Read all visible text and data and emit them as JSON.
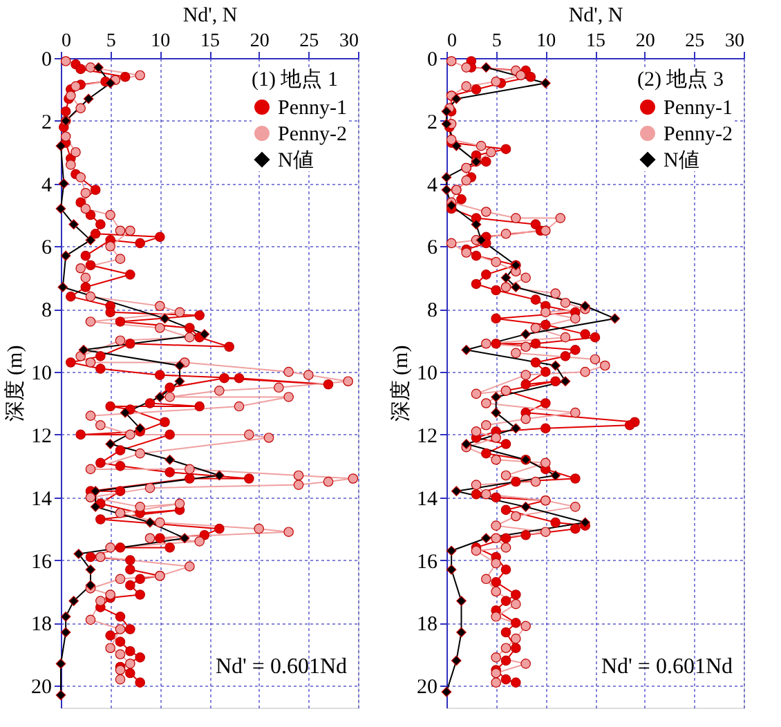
{
  "chart_data": [
    {
      "type": "line",
      "xlabel": "Nd', N",
      "ylabel": "深度 (m)",
      "legend_title": "(1) 地点 1",
      "legend": "top right",
      "grid": true,
      "xlim": [
        0,
        30
      ],
      "xticks": [
        0,
        5,
        10,
        15,
        20,
        25,
        30
      ],
      "ylim": [
        20.7,
        0
      ],
      "yticks": [
        0,
        2,
        4,
        6,
        8,
        10,
        12,
        14,
        16,
        18,
        20
      ],
      "annotations": [
        "Nd' = 0.601Nd"
      ],
      "series": [
        {
          "name": "Penny-1",
          "color": "#e00000",
          "marker": "circle",
          "x": [
            1.5,
            2,
            6.5,
            4.5,
            2,
            1,
            0.8,
            0.5,
            0.3,
            0.5,
            1,
            1.5,
            3.5,
            2,
            3,
            4,
            3.5,
            10,
            8,
            5,
            2.5,
            3,
            7,
            2.5,
            1,
            5,
            5,
            14,
            6,
            13,
            14,
            17,
            7,
            4,
            1,
            4,
            10,
            18,
            27,
            16.5,
            11,
            9,
            14,
            5,
            7,
            10.5,
            8,
            2,
            11,
            6,
            4,
            6,
            11,
            19,
            13,
            3,
            6,
            4,
            8,
            12,
            4,
            16,
            14.5,
            10,
            11,
            6,
            3,
            7,
            7,
            10,
            8,
            7,
            8,
            5,
            4,
            6,
            7,
            5,
            6,
            7,
            8,
            6,
            7,
            8
          ],
          "values": [
            0.2,
            0.35,
            0.6,
            0.75,
            0.85,
            1.0,
            1.3,
            1.7,
            2.2,
            2.7,
            3.2,
            3.7,
            4.2,
            4.6,
            5.0,
            5.3,
            5.6,
            5.7,
            5.9,
            5.8,
            6.3,
            6.6,
            6.9,
            7.3,
            7.6,
            7.9,
            8.1,
            8.2,
            8.4,
            8.6,
            8.9,
            9.2,
            9.1,
            9.5,
            9.7,
            9.9,
            10.1,
            10.2,
            10.4,
            10.2,
            10.5,
            11.0,
            11.1,
            11.1,
            11.2,
            11.6,
            11.9,
            12.0,
            12.0,
            12.5,
            12.9,
            13.0,
            13.2,
            13.4,
            13.4,
            13.8,
            13.8,
            14.2,
            14.5,
            14.4,
            14.7,
            15.0,
            15.2,
            15.3,
            15.6,
            15.6,
            15.9,
            16.0,
            16.3,
            16.5,
            16.6,
            16.8,
            17.1,
            17.2,
            17.5,
            17.8,
            18.2,
            18.4,
            18.6,
            18.9,
            19.1,
            19.4,
            19.6,
            19.9
          ]
        },
        {
          "name": "Penny-2",
          "color": "#f0a0a0",
          "marker": "circle",
          "x": [
            0.5,
            3,
            8,
            5.5,
            1.5,
            1,
            2,
            0.5,
            0.5,
            1.5,
            1,
            2,
            2.5,
            2.5,
            5,
            6,
            7,
            5,
            6,
            2,
            2.5,
            3,
            10,
            12,
            3,
            10,
            13,
            6,
            2,
            3,
            12.5,
            23,
            25,
            29,
            22,
            16,
            11,
            23,
            18,
            3,
            4,
            7,
            19,
            21,
            8,
            3,
            13,
            24,
            29.5,
            27,
            24,
            9,
            3,
            8,
            12,
            6,
            10,
            20,
            23,
            9,
            14,
            5,
            4,
            13,
            10,
            6,
            3,
            5,
            4,
            3,
            6,
            5,
            6,
            7,
            6,
            6
          ],
          "values": [
            0.1,
            0.3,
            0.55,
            0.7,
            0.9,
            1.2,
            1.6,
            2.0,
            2.5,
            3.0,
            3.4,
            3.8,
            4.3,
            4.8,
            5.0,
            5.5,
            5.5,
            6.0,
            6.4,
            6.7,
            7.0,
            7.6,
            7.9,
            8.1,
            8.4,
            8.6,
            8.9,
            9.0,
            9.5,
            9.7,
            9.7,
            10.0,
            10.1,
            10.3,
            10.5,
            10.6,
            10.8,
            10.8,
            11.1,
            11.4,
            11.7,
            12.0,
            12.0,
            12.1,
            12.6,
            13.1,
            13.1,
            13.3,
            13.4,
            13.5,
            13.6,
            13.7,
            14.0,
            14.3,
            14.2,
            14.5,
            14.8,
            15.0,
            15.1,
            15.3,
            15.4,
            15.6,
            15.9,
            16.2,
            16.5,
            16.6,
            16.9,
            17.1,
            17.3,
            17.9,
            18.2,
            18.8,
            19.0,
            19.3,
            19.5,
            19.8
          ]
        },
        {
          "name": "N値",
          "color": "#000000",
          "marker": "diamond",
          "x": [
            3.8,
            5,
            2.8,
            0.5,
            0,
            0.3,
            0,
            1.3,
            3,
            0.5,
            0.2,
            10.5,
            14.5,
            2.3,
            12,
            12,
            10,
            6.5,
            8,
            5,
            11,
            16,
            3.5,
            3.5,
            9,
            12.5,
            1.8,
            3,
            3,
            1.3,
            0.5,
            0.5,
            0,
            0
          ],
          "values": [
            0.3,
            0.8,
            1.3,
            2.0,
            2.8,
            4.0,
            4.8,
            5.3,
            5.8,
            6.3,
            7.3,
            8.3,
            8.8,
            9.3,
            9.8,
            10.3,
            10.8,
            11.3,
            11.8,
            12.3,
            12.8,
            13.3,
            13.8,
            14.3,
            14.8,
            15.3,
            15.8,
            16.3,
            16.8,
            17.3,
            17.8,
            18.3,
            19.3,
            20.3
          ]
        }
      ]
    },
    {
      "type": "line",
      "xlabel": "Nd', N",
      "ylabel": "深度 (m)",
      "legend_title": "(2) 地点 3",
      "legend": "top right",
      "grid": true,
      "xlim": [
        0,
        30
      ],
      "xticks": [
        0,
        5,
        10,
        15,
        20,
        25,
        30
      ],
      "ylim": [
        20.7,
        0
      ],
      "yticks": [
        0,
        2,
        4,
        6,
        8,
        10,
        12,
        14,
        16,
        18,
        20
      ],
      "annotations": [
        "Nd' = 0.601Nd"
      ],
      "series": [
        {
          "name": "Penny-1",
          "color": "#e00000",
          "marker": "circle",
          "x": [
            2.5,
            2.5,
            8,
            8.5,
            5.5,
            3,
            0.5,
            0.5,
            0.3,
            0.5,
            6,
            3,
            4,
            2,
            2.5,
            1,
            1.5,
            0.5,
            3,
            9,
            9.5,
            4,
            4,
            2,
            3,
            7,
            4,
            3,
            5,
            9,
            10,
            13,
            5,
            10,
            14,
            15,
            9,
            5,
            13,
            12,
            9,
            10,
            8,
            11,
            6,
            10,
            8,
            19,
            18.5,
            10,
            5,
            3,
            6,
            4,
            8,
            10,
            13,
            7,
            3,
            5,
            10,
            6,
            11,
            14,
            13,
            8,
            6,
            3,
            5,
            6,
            5,
            7,
            6,
            5,
            7,
            6,
            7,
            6,
            5,
            6,
            7
          ],
          "values": [
            0.1,
            0.3,
            0.4,
            0.6,
            0.8,
            1.0,
            1.2,
            1.7,
            2.2,
            2.7,
            2.9,
            3.1,
            3.3,
            3.5,
            3.8,
            4.2,
            4.5,
            4.8,
            5.1,
            5.3,
            5.5,
            5.7,
            5.9,
            6.1,
            6.3,
            6.6,
            6.9,
            7.2,
            7.4,
            7.7,
            7.9,
            8.1,
            8.3,
            8.5,
            8.8,
            8.9,
            9.1,
            9.1,
            9.3,
            9.5,
            9.7,
            10.0,
            10.4,
            10.3,
            10.6,
            11.0,
            11.3,
            11.6,
            11.7,
            11.8,
            11.9,
            12.1,
            12.3,
            12.6,
            12.8,
            13.1,
            13.4,
            13.5,
            13.9,
            14.0,
            14.1,
            14.4,
            14.8,
            14.9,
            15.0,
            15.2,
            15.3,
            15.6,
            15.9,
            16.3,
            16.7,
            17.1,
            17.3,
            17.6,
            18.0,
            18.3,
            18.8,
            19.2,
            19.5,
            19.8,
            19.9
          ]
        },
        {
          "name": "Penny-2",
          "color": "#f0a0a0",
          "marker": "circle",
          "x": [
            0.5,
            2,
            7,
            7.5,
            5,
            2,
            0.5,
            0.3,
            0.5,
            0.5,
            3.5,
            4.5,
            3,
            2,
            2,
            1,
            0.5,
            4,
            7,
            11.5,
            10,
            6,
            3,
            0.5,
            2,
            5,
            7,
            8,
            6,
            11,
            12,
            14,
            10,
            13,
            9,
            12,
            4,
            8,
            7,
            15,
            16,
            14,
            8,
            3,
            6,
            4,
            13,
            8,
            4,
            3,
            5,
            2,
            5,
            10,
            6,
            9,
            3,
            4,
            10,
            13,
            7,
            5,
            10,
            5,
            6,
            3,
            5,
            4,
            5,
            7,
            5,
            8,
            7,
            6,
            5,
            8,
            5,
            5
          ],
          "values": [
            0.1,
            0.3,
            0.4,
            0.55,
            0.75,
            0.9,
            1.2,
            1.6,
            2.1,
            2.6,
            2.8,
            3.0,
            3.3,
            3.5,
            3.9,
            4.2,
            4.6,
            4.9,
            5.1,
            5.1,
            5.5,
            5.6,
            5.8,
            5.9,
            6.2,
            6.5,
            6.8,
            7.0,
            7.3,
            7.5,
            7.8,
            8.0,
            8.1,
            8.3,
            8.6,
            8.9,
            9.1,
            9.2,
            9.4,
            9.6,
            9.8,
            10.0,
            10.1,
            10.7,
            10.6,
            11.0,
            11.3,
            11.5,
            11.7,
            11.9,
            12.1,
            12.4,
            12.8,
            12.9,
            13.3,
            13.5,
            13.6,
            13.9,
            14.1,
            14.3,
            14.6,
            14.9,
            15.1,
            15.3,
            15.6,
            15.7,
            16.1,
            16.6,
            17.0,
            17.4,
            17.8,
            18.1,
            18.5,
            18.8,
            19.1,
            19.3,
            19.6,
            19.9
          ]
        },
        {
          "name": "N値",
          "color": "#000000",
          "marker": "diamond",
          "x": [
            4,
            10,
            1,
            0,
            0,
            1,
            3,
            0,
            0,
            0.5,
            3,
            3.5,
            7,
            6,
            7,
            14,
            17,
            8,
            2,
            11,
            12,
            5,
            5,
            7,
            2,
            8,
            11,
            1,
            8,
            14,
            4,
            0.5,
            0.5,
            1.5,
            1.5,
            1,
            0
          ],
          "values": [
            0.3,
            0.8,
            1.3,
            1.7,
            2.1,
            2.8,
            3.3,
            3.8,
            4.2,
            4.7,
            5.3,
            5.8,
            6.6,
            7.0,
            7.3,
            7.9,
            8.3,
            8.8,
            9.3,
            9.8,
            10.3,
            10.8,
            11.3,
            11.8,
            12.3,
            12.8,
            13.3,
            13.8,
            14.3,
            14.8,
            15.3,
            15.7,
            16.3,
            17.3,
            18.3,
            19.2,
            20.2
          ]
        }
      ]
    }
  ]
}
